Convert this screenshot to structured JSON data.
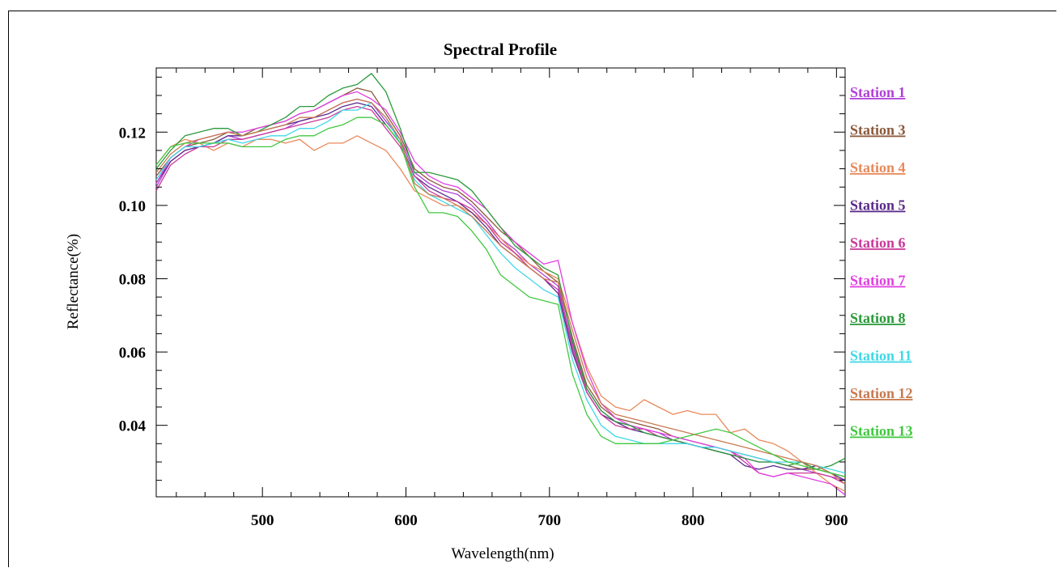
{
  "chart_data": {
    "type": "line",
    "title": "Spectral Profile",
    "xlabel": "Wavelength(nm)",
    "ylabel": "Reflectance(%)",
    "xlim": [
      426,
      906
    ],
    "ylim": [
      0.0205,
      0.1375
    ],
    "xticks": [
      500,
      600,
      700,
      800,
      900
    ],
    "xtick_labels": [
      "500",
      "600",
      "700",
      "800",
      "900"
    ],
    "yticks": [
      0.04,
      0.06,
      0.08,
      0.1,
      0.12
    ],
    "ytick_labels": [
      "0.04",
      "0.06",
      "0.08",
      "0.10",
      "0.12"
    ],
    "grid": false,
    "legend_position": "right",
    "x": [
      426,
      436,
      446,
      456,
      466,
      476,
      486,
      496,
      506,
      516,
      526,
      536,
      546,
      556,
      566,
      576,
      586,
      596,
      606,
      616,
      626,
      636,
      646,
      656,
      666,
      676,
      686,
      696,
      706,
      716,
      726,
      736,
      746,
      756,
      766,
      776,
      786,
      796,
      806,
      816,
      826,
      836,
      846,
      856,
      866,
      876,
      886,
      896,
      906
    ],
    "series": [
      {
        "name": "Station 1",
        "color": "#b040d8",
        "values": [
          0.105,
          0.112,
          0.115,
          0.116,
          0.117,
          0.119,
          0.118,
          0.119,
          0.12,
          0.121,
          0.123,
          0.124,
          0.126,
          0.128,
          0.129,
          0.128,
          0.123,
          0.118,
          0.109,
          0.106,
          0.104,
          0.103,
          0.1,
          0.096,
          0.091,
          0.088,
          0.084,
          0.081,
          0.078,
          0.062,
          0.05,
          0.044,
          0.041,
          0.04,
          0.039,
          0.038,
          0.036,
          0.035,
          0.034,
          0.033,
          0.032,
          0.031,
          0.03,
          0.03,
          0.029,
          0.028,
          0.027,
          0.026,
          0.025
        ]
      },
      {
        "name": "Station 3",
        "color": "#8b5a3c",
        "values": [
          0.108,
          0.113,
          0.116,
          0.117,
          0.118,
          0.12,
          0.119,
          0.121,
          0.122,
          0.123,
          0.125,
          0.126,
          0.128,
          0.13,
          0.132,
          0.131,
          0.125,
          0.119,
          0.11,
          0.107,
          0.105,
          0.104,
          0.101,
          0.097,
          0.093,
          0.09,
          0.086,
          0.082,
          0.079,
          0.064,
          0.051,
          0.045,
          0.042,
          0.041,
          0.04,
          0.039,
          0.037,
          0.036,
          0.035,
          0.034,
          0.033,
          0.032,
          0.031,
          0.03,
          0.029,
          0.028,
          0.028,
          0.027,
          0.026
        ]
      },
      {
        "name": "Station 4",
        "color": "#e8895a",
        "values": [
          0.111,
          0.116,
          0.118,
          0.117,
          0.115,
          0.117,
          0.116,
          0.118,
          0.118,
          0.117,
          0.118,
          0.115,
          0.117,
          0.117,
          0.119,
          0.117,
          0.115,
          0.11,
          0.104,
          0.102,
          0.1,
          0.1,
          0.098,
          0.095,
          0.091,
          0.087,
          0.084,
          0.082,
          0.08,
          0.068,
          0.056,
          0.048,
          0.045,
          0.044,
          0.047,
          0.045,
          0.043,
          0.044,
          0.043,
          0.043,
          0.038,
          0.039,
          0.036,
          0.035,
          0.033,
          0.03,
          0.027,
          0.024,
          0.022
        ]
      },
      {
        "name": "Station 5",
        "color": "#5a2a8a",
        "values": [
          0.106,
          0.112,
          0.115,
          0.116,
          0.117,
          0.119,
          0.119,
          0.12,
          0.121,
          0.122,
          0.123,
          0.124,
          0.125,
          0.127,
          0.128,
          0.127,
          0.122,
          0.117,
          0.108,
          0.105,
          0.103,
          0.101,
          0.098,
          0.094,
          0.089,
          0.086,
          0.083,
          0.08,
          0.076,
          0.06,
          0.049,
          0.043,
          0.041,
          0.039,
          0.038,
          0.037,
          0.036,
          0.035,
          0.034,
          0.033,
          0.032,
          0.029,
          0.028,
          0.029,
          0.028,
          0.028,
          0.029,
          0.027,
          0.025
        ]
      },
      {
        "name": "Station 6",
        "color": "#c83a9a",
        "values": [
          0.104,
          0.111,
          0.114,
          0.116,
          0.116,
          0.118,
          0.118,
          0.119,
          0.12,
          0.121,
          0.122,
          0.123,
          0.124,
          0.126,
          0.127,
          0.126,
          0.121,
          0.116,
          0.108,
          0.104,
          0.102,
          0.101,
          0.099,
          0.095,
          0.09,
          0.087,
          0.083,
          0.08,
          0.077,
          0.061,
          0.049,
          0.043,
          0.04,
          0.039,
          0.039,
          0.037,
          0.036,
          0.035,
          0.034,
          0.034,
          0.033,
          0.03,
          0.027,
          0.026,
          0.027,
          0.027,
          0.027,
          0.026,
          0.024
        ]
      },
      {
        "name": "Station 7",
        "color": "#e040e0",
        "values": [
          0.106,
          0.113,
          0.116,
          0.118,
          0.119,
          0.12,
          0.12,
          0.121,
          0.122,
          0.123,
          0.125,
          0.126,
          0.128,
          0.13,
          0.131,
          0.129,
          0.126,
          0.12,
          0.112,
          0.108,
          0.106,
          0.105,
          0.102,
          0.099,
          0.094,
          0.09,
          0.087,
          0.084,
          0.085,
          0.068,
          0.055,
          0.046,
          0.042,
          0.04,
          0.039,
          0.038,
          0.037,
          0.036,
          0.035,
          0.034,
          0.033,
          0.031,
          0.027,
          0.026,
          0.027,
          0.026,
          0.025,
          0.024,
          0.021
        ]
      },
      {
        "name": "Station 8",
        "color": "#2a9a3a",
        "values": [
          0.11,
          0.115,
          0.119,
          0.12,
          0.121,
          0.121,
          0.119,
          0.12,
          0.122,
          0.124,
          0.127,
          0.127,
          0.13,
          0.132,
          0.133,
          0.136,
          0.131,
          0.121,
          0.109,
          0.109,
          0.108,
          0.107,
          0.104,
          0.099,
          0.094,
          0.089,
          0.086,
          0.083,
          0.081,
          0.063,
          0.05,
          0.044,
          0.041,
          0.04,
          0.038,
          0.037,
          0.036,
          0.035,
          0.034,
          0.033,
          0.032,
          0.031,
          0.03,
          0.03,
          0.029,
          0.03,
          0.028,
          0.029,
          0.031
        ]
      },
      {
        "name": "Station 11",
        "color": "#40d8e8",
        "values": [
          0.107,
          0.113,
          0.116,
          0.116,
          0.117,
          0.118,
          0.117,
          0.118,
          0.119,
          0.119,
          0.121,
          0.121,
          0.123,
          0.126,
          0.126,
          0.128,
          0.124,
          0.117,
          0.107,
          0.103,
          0.101,
          0.099,
          0.097,
          0.092,
          0.087,
          0.083,
          0.08,
          0.077,
          0.075,
          0.058,
          0.047,
          0.04,
          0.037,
          0.036,
          0.035,
          0.035,
          0.035,
          0.035,
          0.034,
          0.034,
          0.033,
          0.032,
          0.031,
          0.03,
          0.03,
          0.03,
          0.029,
          0.028,
          0.027
        ]
      },
      {
        "name": "Station 12",
        "color": "#c87a50",
        "values": [
          0.109,
          0.114,
          0.117,
          0.118,
          0.119,
          0.12,
          0.119,
          0.12,
          0.121,
          0.122,
          0.124,
          0.124,
          0.126,
          0.128,
          0.129,
          0.128,
          0.124,
          0.118,
          0.106,
          0.103,
          0.102,
          0.1,
          0.097,
          0.093,
          0.089,
          0.086,
          0.083,
          0.08,
          0.079,
          0.066,
          0.053,
          0.046,
          0.043,
          0.042,
          0.041,
          0.04,
          0.039,
          0.038,
          0.037,
          0.036,
          0.035,
          0.034,
          0.033,
          0.032,
          0.031,
          0.03,
          0.029,
          0.027,
          0.024
        ]
      },
      {
        "name": "Station 13",
        "color": "#40c840",
        "values": [
          0.111,
          0.116,
          0.117,
          0.117,
          0.117,
          0.117,
          0.116,
          0.116,
          0.116,
          0.118,
          0.119,
          0.119,
          0.121,
          0.122,
          0.124,
          0.124,
          0.122,
          0.117,
          0.105,
          0.098,
          0.098,
          0.097,
          0.093,
          0.088,
          0.081,
          0.078,
          0.075,
          0.074,
          0.073,
          0.054,
          0.043,
          0.037,
          0.035,
          0.035,
          0.035,
          0.035,
          0.036,
          0.037,
          0.038,
          0.039,
          0.038,
          0.036,
          0.034,
          0.032,
          0.03,
          0.029,
          0.028,
          0.027,
          0.026
        ]
      }
    ]
  }
}
